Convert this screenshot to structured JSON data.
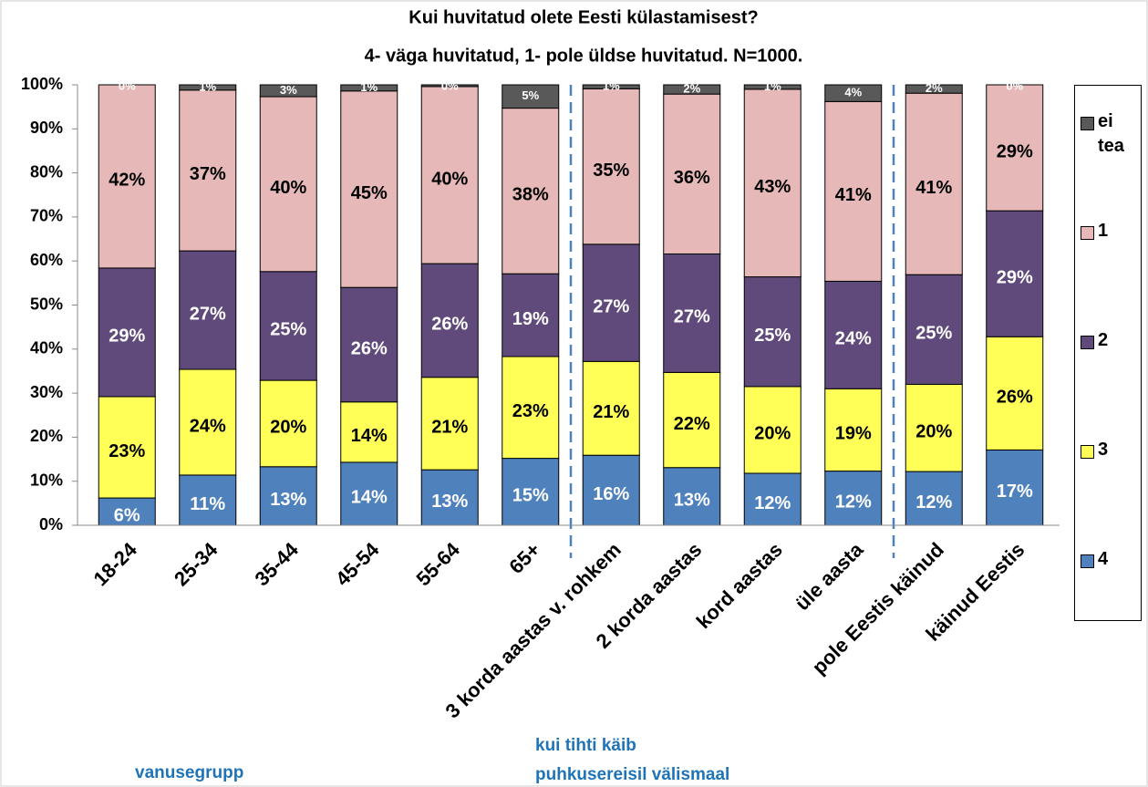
{
  "chart_data": {
    "type": "stacked_bar",
    "title": "Kui huvitatud olete Eesti külastamisest?",
    "subtitle": "4- väga huvitatud, 1- pole üldse huvitatud. N=1000.",
    "categories": [
      "18-24",
      "25-34",
      "35-44",
      "45-54",
      "55-64",
      "65+",
      "3 korda aastas v. rohkem",
      "2 korda aastas",
      "kord aastas",
      "üle aasta",
      "pole Eestis käinud",
      "käinud Eestis"
    ],
    "series": [
      {
        "name": "4",
        "color": "#4f81bd",
        "label_color": "#ffffff",
        "values": [
          6.2,
          11.4,
          13.3,
          14.3,
          12.6,
          15.2,
          15.9,
          13.1,
          11.8,
          12.3,
          12.2,
          17.1
        ],
        "value_labels": [
          "6%",
          "11%",
          "13%",
          "14%",
          "13%",
          "15%",
          "16%",
          "13%",
          "12%",
          "12%",
          "12%",
          "17%"
        ]
      },
      {
        "name": "3",
        "color": "#ffff57",
        "label_color": "#000000",
        "values": [
          23.0,
          24.0,
          19.6,
          13.7,
          21.0,
          23.1,
          21.3,
          21.6,
          19.7,
          18.7,
          19.8,
          25.7
        ],
        "value_labels": [
          "23%",
          "24%",
          "20%",
          "14%",
          "21%",
          "23%",
          "21%",
          "22%",
          "20%",
          "19%",
          "20%",
          "26%"
        ]
      },
      {
        "name": "2",
        "color": "#604a7b",
        "label_color": "#ffffff",
        "values": [
          29.2,
          26.9,
          24.7,
          26.0,
          25.8,
          18.8,
          26.6,
          26.9,
          24.9,
          24.4,
          24.9,
          28.6
        ],
        "value_labels": [
          "29%",
          "27%",
          "25%",
          "26%",
          "26%",
          "19%",
          "27%",
          "27%",
          "25%",
          "24%",
          "25%",
          "29%"
        ]
      },
      {
        "name": "1",
        "color": "#e6b9b8",
        "label_color": "#000000",
        "values": [
          41.6,
          36.5,
          39.7,
          44.6,
          40.2,
          37.6,
          35.3,
          36.3,
          42.6,
          40.8,
          41.2,
          28.6
        ],
        "value_labels": [
          "42%",
          "37%",
          "40%",
          "45%",
          "40%",
          "38%",
          "35%",
          "36%",
          "43%",
          "41%",
          "41%",
          "29%"
        ]
      },
      {
        "name": "ei tea",
        "color": "#595959",
        "label_color": "#ffffff",
        "values": [
          0.0,
          1.2,
          2.7,
          1.4,
          0.4,
          5.3,
          0.9,
          2.1,
          1.0,
          3.8,
          1.9,
          0.0
        ],
        "value_labels": [
          "0%",
          "1%",
          "3%",
          "1%",
          "0%",
          "5%",
          "1%",
          "2%",
          "1%",
          "4%",
          "2%",
          "0%"
        ]
      }
    ],
    "ylim": [
      0,
      100
    ],
    "yticks": [
      {
        "value": 0,
        "label": "0%"
      },
      {
        "value": 10,
        "label": "10%"
      },
      {
        "value": 20,
        "label": "20%"
      },
      {
        "value": 30,
        "label": "30%"
      },
      {
        "value": 40,
        "label": "40%"
      },
      {
        "value": 50,
        "label": "50%"
      },
      {
        "value": 60,
        "label": "60%"
      },
      {
        "value": 70,
        "label": "70%"
      },
      {
        "value": 80,
        "label": "80%"
      },
      {
        "value": 90,
        "label": "90%"
      },
      {
        "value": 100,
        "label": "100%"
      }
    ],
    "legend": "right",
    "annotations": [
      "vanusegrupp",
      "kui tihti käib",
      "puhkusereisil välismaal"
    ]
  }
}
